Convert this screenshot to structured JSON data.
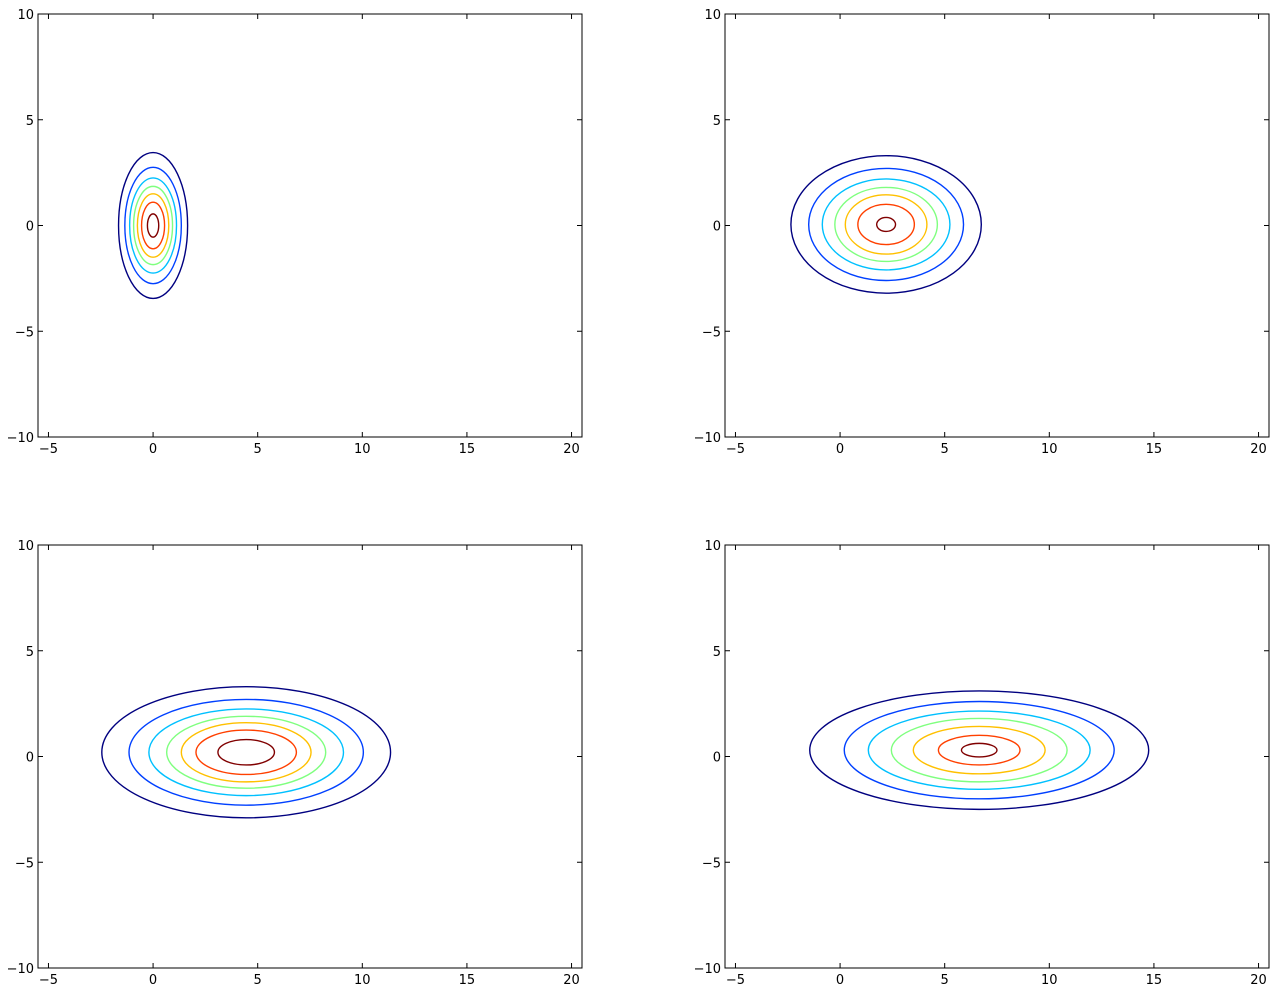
{
  "chart_data": [
    {
      "type": "contour",
      "title": "",
      "xlabel": "",
      "ylabel": "",
      "xlim": [
        -5.5,
        20.5
      ],
      "ylim": [
        -10,
        10
      ],
      "xticks": [
        -5,
        0,
        5,
        10,
        15,
        20
      ],
      "xtick_labels": [
        "−5",
        "0",
        "5",
        "10",
        "15",
        "20"
      ],
      "yticks": [
        -10,
        -5,
        0,
        5,
        10
      ],
      "ytick_labels": [
        "−10",
        "−5",
        "0",
        "5",
        "10"
      ],
      "grid": false,
      "contours": [
        {
          "level": 1,
          "color": "#000080",
          "cx": 0.0,
          "cy": 0.0,
          "rx": 1.65,
          "ry": 3.45
        },
        {
          "level": 2,
          "color": "#0040ff",
          "cx": 0.0,
          "cy": 0.0,
          "rx": 1.35,
          "ry": 2.75
        },
        {
          "level": 3,
          "color": "#00c0ff",
          "cx": 0.0,
          "cy": 0.0,
          "rx": 1.12,
          "ry": 2.25
        },
        {
          "level": 4,
          "color": "#7fff7f",
          "cx": 0.0,
          "cy": 0.0,
          "rx": 0.93,
          "ry": 1.85
        },
        {
          "level": 5,
          "color": "#ffc000",
          "cx": 0.0,
          "cy": 0.0,
          "rx": 0.75,
          "ry": 1.5
        },
        {
          "level": 6,
          "color": "#ff4000",
          "cx": 0.0,
          "cy": 0.0,
          "rx": 0.55,
          "ry": 1.1
        },
        {
          "level": 7,
          "color": "#800000",
          "cx": 0.0,
          "cy": 0.0,
          "rx": 0.27,
          "ry": 0.55
        }
      ]
    },
    {
      "type": "contour",
      "title": "",
      "xlabel": "",
      "ylabel": "",
      "xlim": [
        -5.5,
        20.5
      ],
      "ylim": [
        -10,
        10
      ],
      "xticks": [
        -5,
        0,
        5,
        10,
        15,
        20
      ],
      "xtick_labels": [
        "−5",
        "0",
        "5",
        "10",
        "15",
        "20"
      ],
      "yticks": [
        -10,
        -5,
        0,
        5,
        10
      ],
      "ytick_labels": [
        "−10",
        "−5",
        "0",
        "5",
        "10"
      ],
      "grid": false,
      "contours": [
        {
          "level": 1,
          "color": "#000080",
          "cx": 2.2,
          "cy": 0.05,
          "rx": 4.55,
          "ry": 3.25
        },
        {
          "level": 2,
          "color": "#0040ff",
          "cx": 2.2,
          "cy": 0.05,
          "rx": 3.7,
          "ry": 2.65
        },
        {
          "level": 3,
          "color": "#00c0ff",
          "cx": 2.2,
          "cy": 0.05,
          "rx": 3.05,
          "ry": 2.15
        },
        {
          "level": 4,
          "color": "#7fff7f",
          "cx": 2.2,
          "cy": 0.05,
          "rx": 2.45,
          "ry": 1.75
        },
        {
          "level": 5,
          "color": "#ffc000",
          "cx": 2.2,
          "cy": 0.05,
          "rx": 1.95,
          "ry": 1.4
        },
        {
          "level": 6,
          "color": "#ff4000",
          "cx": 2.2,
          "cy": 0.05,
          "rx": 1.35,
          "ry": 0.95
        },
        {
          "level": 7,
          "color": "#800000",
          "cx": 2.2,
          "cy": 0.05,
          "rx": 0.45,
          "ry": 0.33
        }
      ]
    },
    {
      "type": "contour",
      "title": "",
      "xlabel": "",
      "ylabel": "",
      "xlim": [
        -5.5,
        20.5
      ],
      "ylim": [
        -10,
        10
      ],
      "xticks": [
        -5,
        0,
        5,
        10,
        15,
        20
      ],
      "xtick_labels": [
        "−5",
        "0",
        "5",
        "10",
        "15",
        "20"
      ],
      "yticks": [
        -10,
        -5,
        0,
        5,
        10
      ],
      "ytick_labels": [
        "−10",
        "−5",
        "0",
        "5",
        "10"
      ],
      "grid": false,
      "contours": [
        {
          "level": 1,
          "color": "#000080",
          "cx": 4.45,
          "cy": 0.2,
          "rx": 6.9,
          "ry": 3.1
        },
        {
          "level": 2,
          "color": "#0040ff",
          "cx": 4.45,
          "cy": 0.2,
          "rx": 5.6,
          "ry": 2.5
        },
        {
          "level": 3,
          "color": "#00c0ff",
          "cx": 4.45,
          "cy": 0.2,
          "rx": 4.65,
          "ry": 2.05
        },
        {
          "level": 4,
          "color": "#7fff7f",
          "cx": 4.45,
          "cy": 0.2,
          "rx": 3.8,
          "ry": 1.7
        },
        {
          "level": 5,
          "color": "#ffc000",
          "cx": 4.45,
          "cy": 0.2,
          "rx": 3.1,
          "ry": 1.4
        },
        {
          "level": 6,
          "color": "#ff4000",
          "cx": 4.45,
          "cy": 0.2,
          "rx": 2.4,
          "ry": 1.05
        },
        {
          "level": 7,
          "color": "#800000",
          "cx": 4.45,
          "cy": 0.2,
          "rx": 1.35,
          "ry": 0.6
        }
      ]
    },
    {
      "type": "contour",
      "title": "",
      "xlabel": "",
      "ylabel": "",
      "xlim": [
        -5.5,
        20.5
      ],
      "ylim": [
        -10,
        10
      ],
      "xticks": [
        -5,
        0,
        5,
        10,
        15,
        20
      ],
      "xtick_labels": [
        "−5",
        "0",
        "5",
        "10",
        "15",
        "20"
      ],
      "yticks": [
        -10,
        -5,
        0,
        5,
        10
      ],
      "ytick_labels": [
        "−10",
        "−5",
        "0",
        "5",
        "10"
      ],
      "grid": false,
      "contours": [
        {
          "level": 1,
          "color": "#000080",
          "cx": 6.65,
          "cy": 0.3,
          "rx": 8.1,
          "ry": 2.8
        },
        {
          "level": 2,
          "color": "#0040ff",
          "cx": 6.65,
          "cy": 0.3,
          "rx": 6.45,
          "ry": 2.3
        },
        {
          "level": 3,
          "color": "#00c0ff",
          "cx": 6.65,
          "cy": 0.3,
          "rx": 5.3,
          "ry": 1.85
        },
        {
          "level": 4,
          "color": "#7fff7f",
          "cx": 6.65,
          "cy": 0.3,
          "rx": 4.2,
          "ry": 1.5
        },
        {
          "level": 5,
          "color": "#ffc000",
          "cx": 6.65,
          "cy": 0.3,
          "rx": 3.15,
          "ry": 1.12
        },
        {
          "level": 6,
          "color": "#ff4000",
          "cx": 6.65,
          "cy": 0.3,
          "rx": 1.95,
          "ry": 0.7
        },
        {
          "level": 7,
          "color": "#800000",
          "cx": 6.65,
          "cy": 0.3,
          "rx": 0.85,
          "ry": 0.32
        }
      ]
    }
  ]
}
